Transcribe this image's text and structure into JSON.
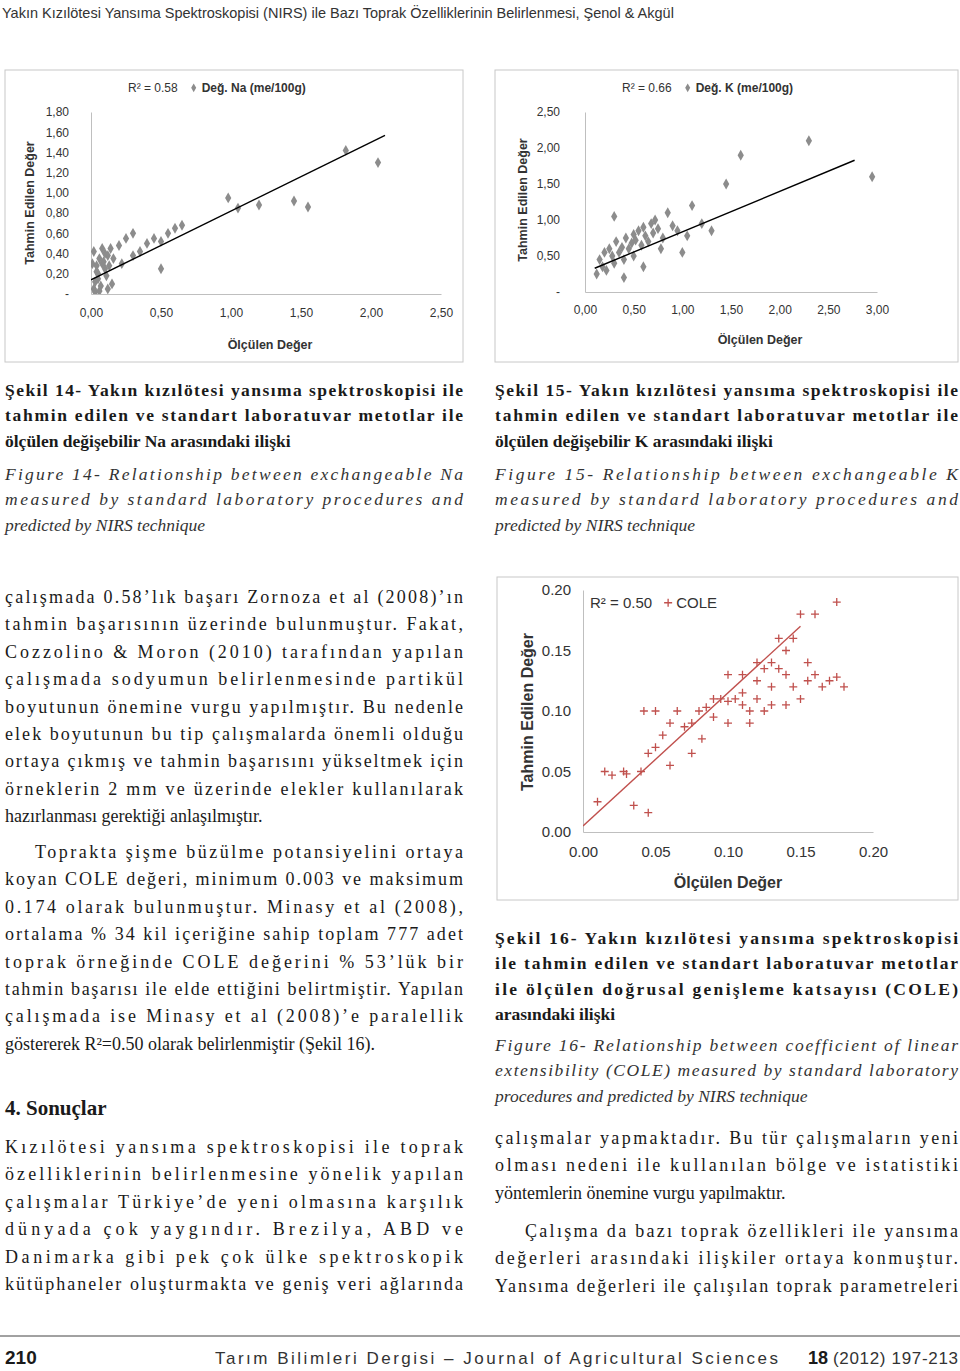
{
  "header": {
    "running_title": "Yakın Kızılötesi Yansıma Spektroskopisi (NIRS) ile Bazı Toprak Özelliklerinin Belirlenmesi, Şenol & Akgül"
  },
  "chart_data": [
    {
      "type": "scatter",
      "annotation": "R² = 0.58",
      "legend": "top-left",
      "xlabel": "Ölçülen Değer",
      "ylabel": "Tahmin Edilen Değer",
      "xlim": [
        0,
        2.5
      ],
      "ylim": [
        0,
        1.8
      ],
      "xticks": [
        {
          "value": 0,
          "label": "0,00"
        },
        {
          "value": 0.5,
          "label": "0,50"
        },
        {
          "value": 1,
          "label": "1,00"
        },
        {
          "value": 1.5,
          "label": "1,50"
        },
        {
          "value": 2,
          "label": "2,00"
        },
        {
          "value": 2.5,
          "label": "2,50"
        }
      ],
      "yticks": [
        {
          "value": 0,
          "label": "-"
        },
        {
          "value": 0.2,
          "label": "0,20"
        },
        {
          "value": 0.4,
          "label": "0,40"
        },
        {
          "value": 0.6,
          "label": "0,60"
        },
        {
          "value": 0.8,
          "label": "0,80"
        },
        {
          "value": 1,
          "label": "1,00"
        },
        {
          "value": 1.2,
          "label": "1,20"
        },
        {
          "value": 1.4,
          "label": "1,40"
        },
        {
          "value": 1.6,
          "label": "1,60"
        },
        {
          "value": 1.8,
          "label": "1,80"
        }
      ],
      "series": [
        {
          "name": "Değ. Na (me/100g)",
          "color": "#8c8c8c",
          "marker": "diamond",
          "x": [
            0.02,
            0.03,
            0.05,
            0.04,
            0.06,
            0.02,
            0.08,
            0.05,
            0.07,
            0.1,
            0.09,
            0.12,
            0.03,
            0.06,
            0.11,
            0.13,
            0.15,
            0.04,
            0.08,
            0.1,
            0.14,
            0.01,
            0.12,
            0.16,
            0.2,
            0.25,
            0.3,
            0.35,
            0.4,
            0.45,
            0.3,
            0.5,
            0.55,
            0.6,
            0.65,
            0.5,
            0.22,
            0.98,
            1.05,
            1.2,
            1.45,
            1.55,
            1.82,
            2.05
          ],
          "values": [
            0.05,
            0.12,
            0.2,
            0.28,
            0.35,
            0.42,
            0.45,
            0.15,
            0.08,
            0.25,
            0.32,
            0.38,
            0.02,
            0.03,
            0.18,
            0.28,
            0.1,
            0.22,
            0.3,
            0.4,
            0.45,
            0.3,
            0.05,
            0.35,
            0.48,
            0.55,
            0.38,
            0.42,
            0.5,
            0.55,
            0.6,
            0.52,
            0.6,
            0.65,
            0.68,
            0.25,
            0.3,
            0.95,
            0.85,
            0.88,
            0.92,
            0.86,
            1.42,
            1.3
          ]
        },
        {
          "type": "line",
          "color": "#000000",
          "x": [
            0,
            2.1
          ],
          "values": [
            0.14,
            1.57
          ]
        }
      ]
    },
    {
      "type": "scatter",
      "annotation": "R² = 0.66",
      "legend": "top-left",
      "xlabel": "Ölçülen Değer",
      "ylabel": "Tahmin Edilen Değer",
      "xlim": [
        0,
        3
      ],
      "ylim": [
        0,
        2.5
      ],
      "xticks": [
        {
          "value": 0,
          "label": "0,00"
        },
        {
          "value": 0.5,
          "label": "0,50"
        },
        {
          "value": 1,
          "label": "1,00"
        },
        {
          "value": 1.5,
          "label": "1,50"
        },
        {
          "value": 2,
          "label": "2,00"
        },
        {
          "value": 2.5,
          "label": "2,50"
        },
        {
          "value": 3,
          "label": "3,00"
        }
      ],
      "yticks": [
        {
          "value": 0,
          "label": "-"
        },
        {
          "value": 0.5,
          "label": "0,50"
        },
        {
          "value": 1,
          "label": "1,00"
        },
        {
          "value": 1.5,
          "label": "1,50"
        },
        {
          "value": 2,
          "label": "2,00"
        },
        {
          "value": 2.5,
          "label": "2,50"
        }
      ],
      "series": [
        {
          "name": "Değ. K (me/100g)",
          "color": "#8c8c8c",
          "marker": "diamond",
          "x": [
            0.12,
            0.15,
            0.18,
            0.2,
            0.22,
            0.25,
            0.28,
            0.3,
            0.3,
            0.32,
            0.35,
            0.38,
            0.4,
            0.42,
            0.45,
            0.48,
            0.5,
            0.5,
            0.52,
            0.55,
            0.58,
            0.6,
            0.62,
            0.65,
            0.68,
            0.7,
            0.72,
            0.75,
            0.78,
            0.8,
            0.85,
            0.9,
            0.95,
            1.0,
            1.05,
            1.1,
            1.2,
            1.3,
            1.45,
            1.6,
            2.3,
            2.95,
            0.4,
            0.6
          ],
          "values": [
            0.25,
            0.45,
            0.35,
            0.55,
            0.3,
            0.6,
            0.5,
            1.05,
            0.4,
            0.7,
            0.55,
            0.62,
            0.45,
            0.75,
            0.6,
            0.68,
            0.8,
            0.5,
            0.72,
            0.85,
            0.65,
            0.9,
            0.78,
            0.7,
            0.95,
            0.82,
            1.0,
            0.88,
            0.6,
            0.75,
            1.1,
            0.92,
            0.85,
            0.55,
            0.78,
            1.2,
            0.95,
            0.85,
            1.5,
            1.9,
            2.1,
            1.6,
            0.2,
            0.35
          ]
        },
        {
          "type": "line",
          "color": "#000000",
          "x": [
            0.1,
            2.77
          ],
          "values": [
            0.33,
            1.83
          ]
        }
      ]
    },
    {
      "type": "scatter",
      "annotation": "R² = 0.50",
      "legend": "top-left",
      "xlabel": "Ölçülen Değer",
      "ylabel": "Tahmin Edilen Değer",
      "xlim": [
        0,
        0.2
      ],
      "ylim": [
        0,
        0.2
      ],
      "xticks": [
        {
          "value": 0,
          "label": "0.00"
        },
        {
          "value": 0.05,
          "label": "0.05"
        },
        {
          "value": 0.1,
          "label": "0.10"
        },
        {
          "value": 0.15,
          "label": "0.15"
        },
        {
          "value": 0.2,
          "label": "0.20"
        }
      ],
      "yticks": [
        {
          "value": 0,
          "label": "0.00"
        },
        {
          "value": 0.05,
          "label": "0.05"
        },
        {
          "value": 0.1,
          "label": "0.10"
        },
        {
          "value": 0.15,
          "label": "0.15"
        },
        {
          "value": 0.2,
          "label": "0.20"
        }
      ],
      "series": [
        {
          "name": "COLE",
          "color": "#c0504d",
          "marker": "plus",
          "x": [
            0.01,
            0.02,
            0.03,
            0.035,
            0.04,
            0.045,
            0.05,
            0.05,
            0.055,
            0.06,
            0.06,
            0.065,
            0.07,
            0.075,
            0.075,
            0.08,
            0.082,
            0.085,
            0.09,
            0.09,
            0.095,
            0.1,
            0.1,
            0.105,
            0.11,
            0.11,
            0.115,
            0.12,
            0.12,
            0.125,
            0.125,
            0.13,
            0.13,
            0.135,
            0.14,
            0.14,
            0.14,
            0.145,
            0.145,
            0.15,
            0.15,
            0.155,
            0.155,
            0.16,
            0.16,
            0.165,
            0.17,
            0.175,
            0.175,
            0.18,
            0.015,
            0.045,
            0.028,
            0.042,
            0.1,
            0.11,
            0.115,
            0.13,
            0.135,
            0.12
          ],
          "values": [
            0.025,
            0.047,
            0.048,
            0.022,
            0.05,
            0.065,
            0.07,
            0.1,
            0.08,
            0.09,
            0.055,
            0.1,
            0.087,
            0.09,
            0.065,
            0.1,
            0.077,
            0.103,
            0.11,
            0.095,
            0.11,
            0.108,
            0.09,
            0.11,
            0.105,
            0.13,
            0.1,
            0.11,
            0.125,
            0.135,
            0.1,
            0.12,
            0.14,
            0.135,
            0.13,
            0.15,
            0.105,
            0.12,
            0.16,
            0.18,
            0.11,
            0.14,
            0.125,
            0.13,
            0.18,
            0.12,
            0.125,
            0.128,
            0.19,
            0.12,
            0.05,
            0.016,
            0.05,
            0.1,
            0.13,
            0.115,
            0.09,
            0.105,
            0.16,
            0.14
          ]
        },
        {
          "type": "line",
          "color": "#c0504d",
          "x": [
            0,
            0.15
          ],
          "values": [
            0.005,
            0.17
          ]
        }
      ]
    }
  ],
  "captions": [
    {
      "tr": [
        "Şekil 14- Yakın kızılötesi yansıma spektroskopisi ile",
        "tahmin edilen ve standart laboratuvar metotlar ile",
        "ölçülen değişebilir Na arasındaki ilişki"
      ],
      "en": [
        "Figure 14- Relationship between exchangeable Na",
        "measured by standard laboratory procedures and",
        "predicted by NIRS technique"
      ]
    },
    {
      "tr": [
        "Şekil 15- Yakın kızılötesi yansıma spektroskopisi ile",
        "tahmin edilen ve standart laboratuvar metotlar ile",
        "ölçülen değişebilir K arasındaki ilişki"
      ],
      "en": [
        "Figure 15- Relationship between exchangeable K",
        "measured by standard laboratory procedures and",
        "predicted by NIRS technique"
      ]
    },
    {
      "tr": [
        "Şekil 16- Yakın kızılötesi yansıma spektroskopisi",
        "ile tahmin edilen ve standart laboratuvar metotlar",
        "ile ölçülen doğrusal genişleme katsayısı (COLE)",
        "arasındaki ilişki"
      ],
      "en": [
        "Figure 16- Relationship between coefficient of linear",
        "extensibility (COLE) measured by standard laboratory",
        "procedures and predicted by NIRS technique"
      ]
    }
  ],
  "left_column": {
    "paragraphs": [
      [
        "çalışmada 0.58’lık başarı Zornoza et al (2008)’ın",
        "tahmin başarısının üzerinde bulunmuştur. Fakat,",
        "Cozzolino & Moron (2010) tarafından yapılan",
        "çalışmada sodyumun belirlenmesinde partikül",
        "boyutunun önemine vurgu yapılmıştır. Bu nedenle",
        "elek boyutunun bu tip çalışmalarda önemli olduğu",
        "ortaya çıkmış ve tahmin başarısını yükseltmek için",
        "örneklerin 2 mm ve üzerinde elekler kullanılarak",
        "hazırlanması gerektiği anlaşılmıştır."
      ],
      [
        "Toprakta şişme büzülme potansiyelini ortaya",
        "koyan COLE değeri, minimum 0.003 ve maksimum",
        "0.174 olarak bulunmuştur. Minasy et al (2008),",
        "ortalama % 34 kil içeriğine sahip toplam 777 adet",
        "toprak örneğinde COLE değerini % 53’lük bir",
        "tahmin başarısı ile elde ettiğini belirtmiştir. Yapılan",
        "çalışmada ise Minasy et al (2008)’e paralellik",
        "göstererek R²=0.50 olarak belirlenmiştir (Şekil 16)."
      ]
    ],
    "heading": "4. Sonuçlar",
    "section_paragraph": [
      "Kızılötesi yansıma spektroskopisi ile toprak",
      "özelliklerinin belirlenmesine yönelik yapılan",
      "çalışmalar Türkiye’de yeni olmasına karşılık",
      "dünyada çok yaygındır. Brezilya, ABD ve",
      "Danimarka gibi pek çok ülke spektroskopik",
      "kütüphaneler oluşturmakta ve geniş veri ağlarında"
    ]
  },
  "right_column": {
    "paragraphs": [
      [
        "çalışmalar yapmaktadır. Bu tür çalışmaların yeni",
        "olması nedeni ile kullanılan bölge ve istatistiki",
        "yöntemlerin önemine vurgu yapılmaktır."
      ],
      [
        "Çalışma da bazı toprak özellikleri ile yansıma",
        "değerleri arasındaki ilişkiler ortaya konmuştur.",
        "Yansıma değerleri ile çalışılan toprak parametreleri"
      ]
    ]
  },
  "footer": {
    "page": "210",
    "journal": "Tarım Bilimleri Dergisi – Journal of Agricultural Sciences",
    "volume": "18",
    "issue_info": "(2012) 197-213"
  }
}
